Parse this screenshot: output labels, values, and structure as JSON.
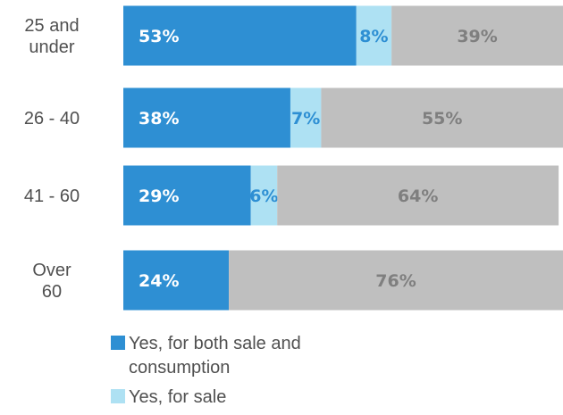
{
  "chart_data": {
    "type": "bar",
    "orientation": "horizontal",
    "stacked": true,
    "categories": [
      "25 and under",
      "26 - 40",
      "41 - 60",
      "Over 60"
    ],
    "series": [
      {
        "name": "Yes, for both sale and consumption",
        "values": [
          53,
          38,
          29,
          24
        ],
        "color": "#2e8fd3",
        "label_color": "#ffffff"
      },
      {
        "name": "Yes, for sale",
        "values": [
          8,
          7,
          6,
          0
        ],
        "color": "#aee1f3",
        "label_color": "#2e8fd3"
      },
      {
        "name": "",
        "values": [
          39,
          55,
          64,
          76
        ],
        "color": "#bfbfbf",
        "label_color": "#7f7f7f"
      }
    ],
    "value_suffix": "%",
    "xlim": [
      0,
      100
    ],
    "legend_position": "bottom-left",
    "grid": false
  },
  "legend": {
    "items": [
      {
        "label": "Yes, for both sale and consumption",
        "color": "#2e8fd3"
      },
      {
        "label": "Yes, for sale",
        "color": "#aee1f3"
      }
    ]
  }
}
